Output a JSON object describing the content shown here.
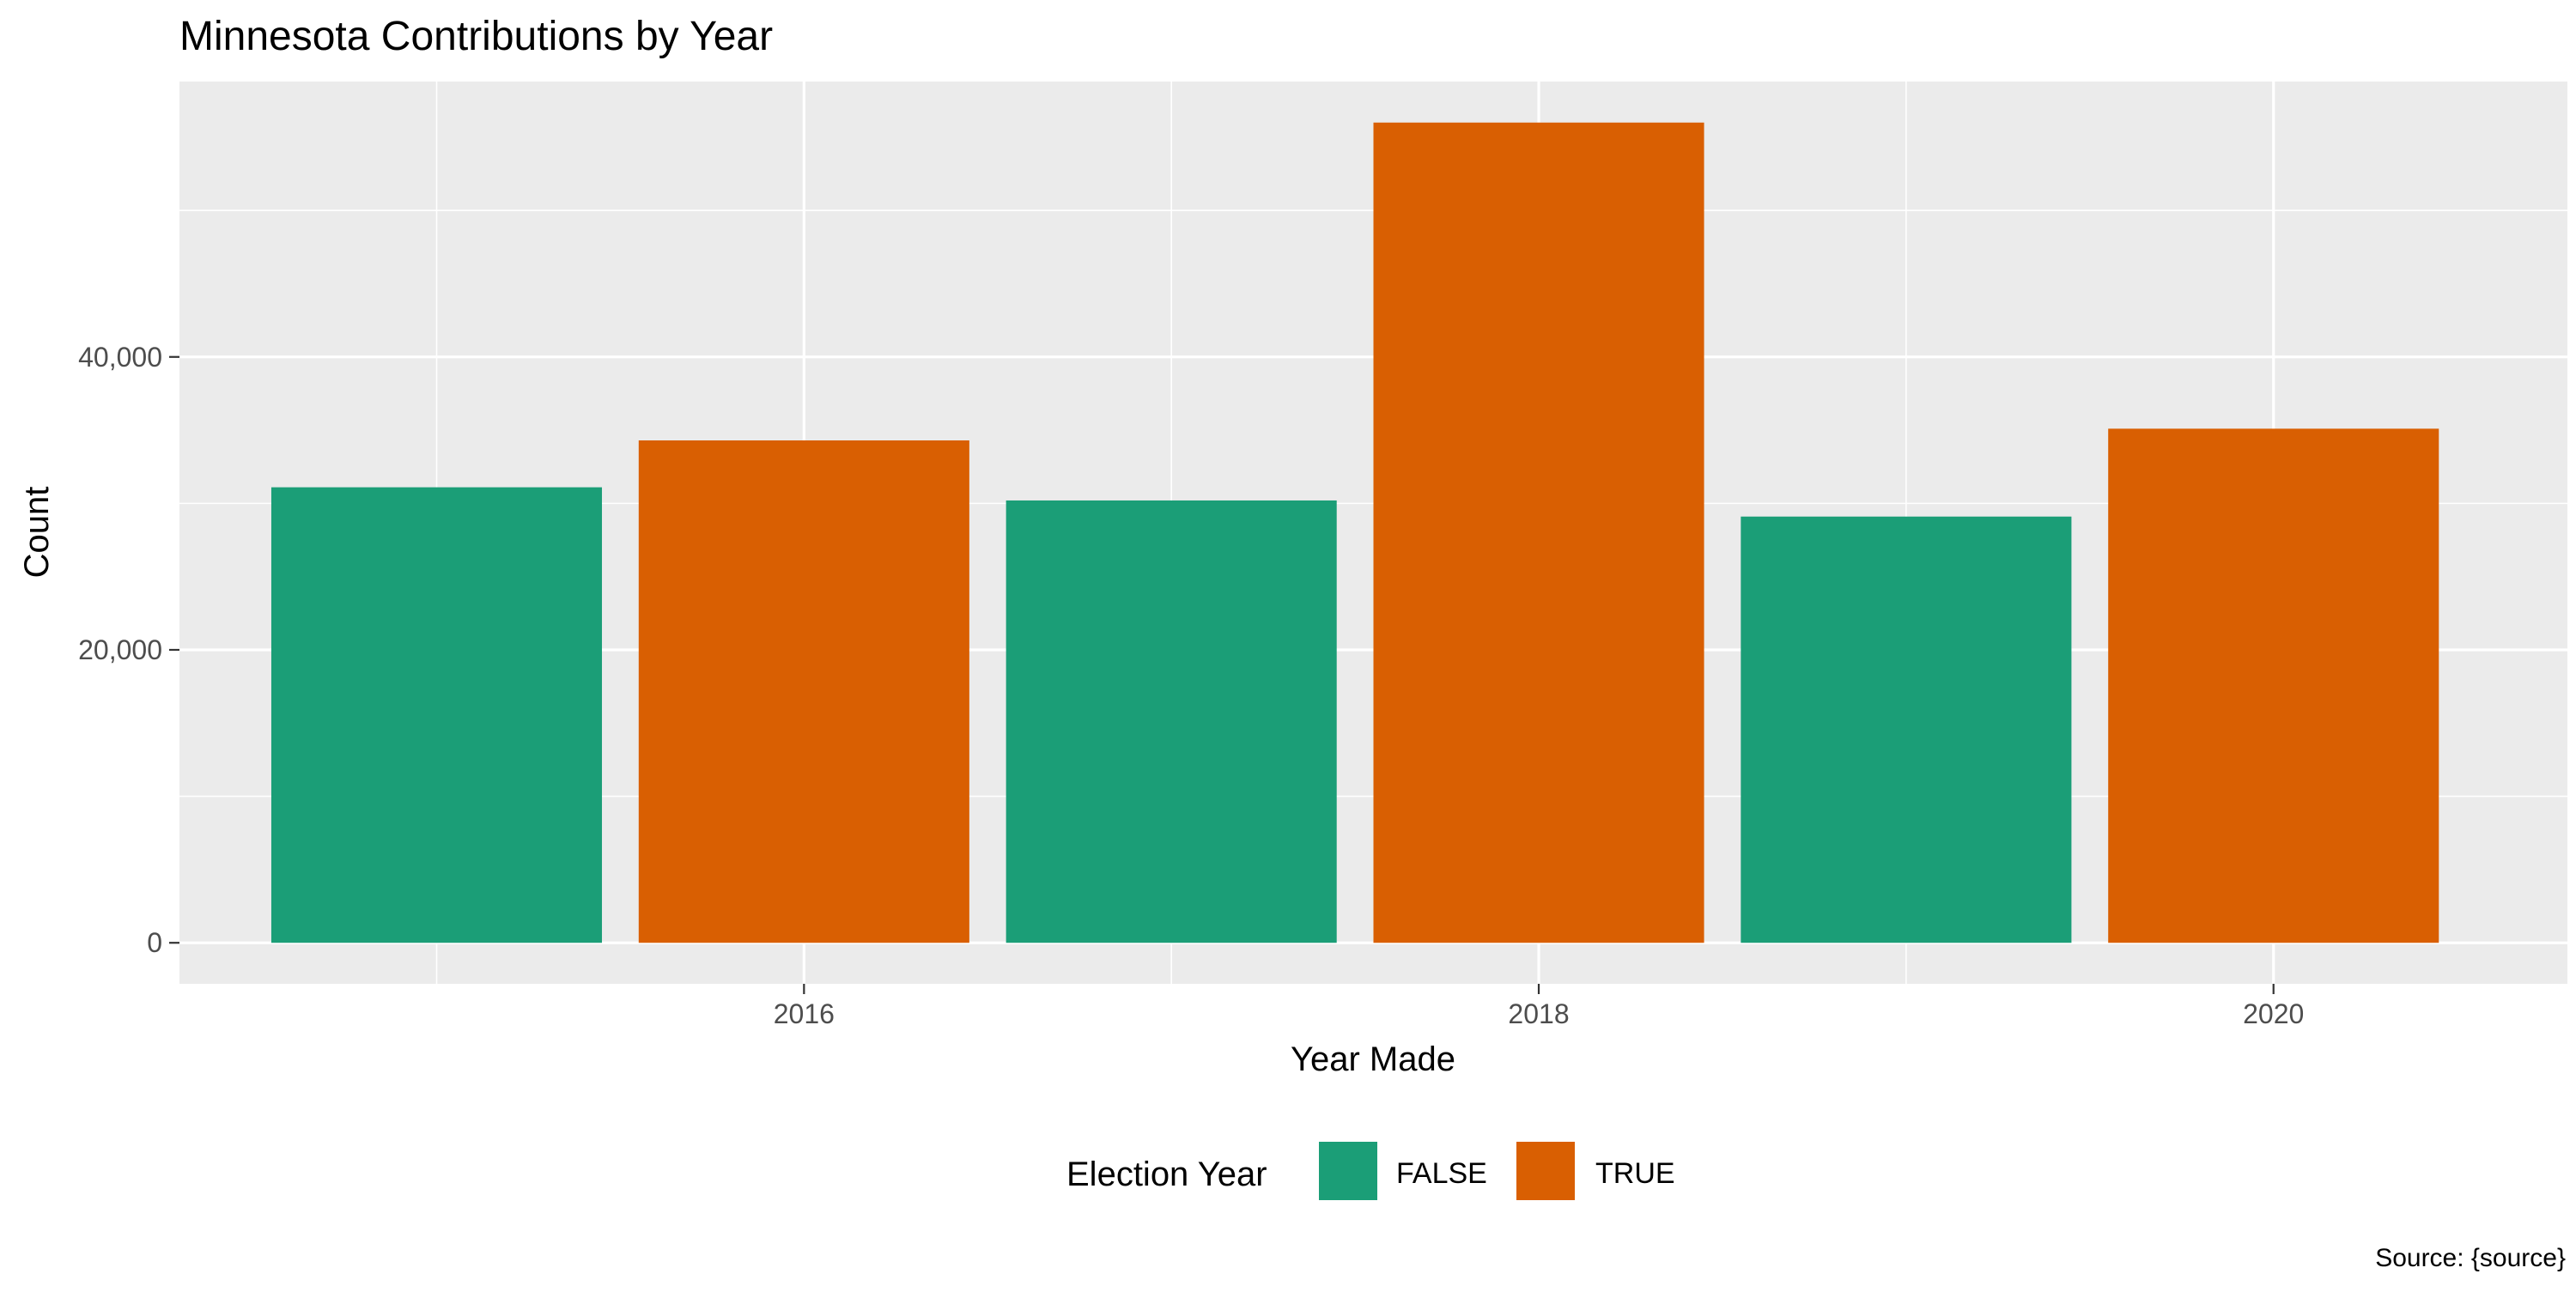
{
  "chart_data": {
    "type": "bar",
    "title": "Minnesota Contributions by Year",
    "xlabel": "Year Made",
    "ylabel": "Count",
    "caption": "Source: {source}",
    "x": [
      2015,
      2016,
      2017,
      2018,
      2019,
      2020
    ],
    "values": [
      31100,
      34300,
      30200,
      56000,
      29100,
      35100
    ],
    "election_year": [
      "FALSE",
      "TRUE",
      "FALSE",
      "TRUE",
      "FALSE",
      "TRUE"
    ],
    "xlim": [
      2014.3,
      2020.8
    ],
    "ylim": [
      -2800,
      58800
    ],
    "x_ticks": [
      2016,
      2018,
      2020
    ],
    "x_tick_labels": [
      "2016",
      "2018",
      "2020"
    ],
    "y_ticks": [
      0,
      20000,
      40000
    ],
    "y_tick_labels": [
      "0",
      "20,000",
      "40,000"
    ],
    "grid": true,
    "legend": {
      "title": "Election Year",
      "placement": "bottom",
      "entries": [
        {
          "label": "FALSE",
          "color": "#1b9e77"
        },
        {
          "label": "TRUE",
          "color": "#d95f02"
        }
      ]
    }
  },
  "colors": {
    "panel_background": "#ebebeb",
    "gridline": "#ffffff",
    "FALSE": "#1b9e77",
    "TRUE": "#d95f02"
  }
}
